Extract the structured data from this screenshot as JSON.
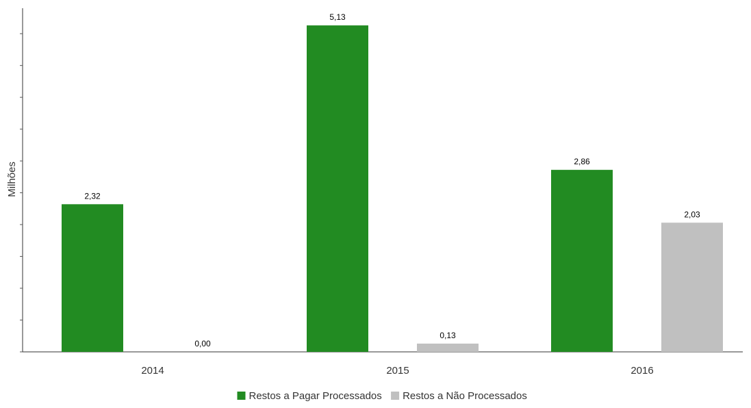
{
  "chart_data": {
    "type": "bar",
    "categories": [
      "2014",
      "2015",
      "2016"
    ],
    "series": [
      {
        "name": "Restos a Pagar Processados",
        "color": "#228b22",
        "values": [
          2.32,
          5.13,
          2.86
        ],
        "labels": [
          "2,32",
          "5,13",
          "2,86"
        ]
      },
      {
        "name": "Restos a Não Processados",
        "color": "#c0c0c0",
        "values": [
          0.0,
          0.13,
          2.03
        ],
        "labels": [
          "0,00",
          "0,13",
          "2,03"
        ]
      }
    ],
    "title": "",
    "xlabel": "",
    "ylabel": "Milhões",
    "ylim": [
      0,
      5.4
    ],
    "y_ticks": [
      0,
      0.5,
      1.0,
      1.5,
      2.0,
      2.5,
      3.0,
      3.5,
      4.0,
      4.5,
      5.0
    ],
    "y_tick_labels_shown": false,
    "grid": false,
    "legend_position": "bottom"
  }
}
